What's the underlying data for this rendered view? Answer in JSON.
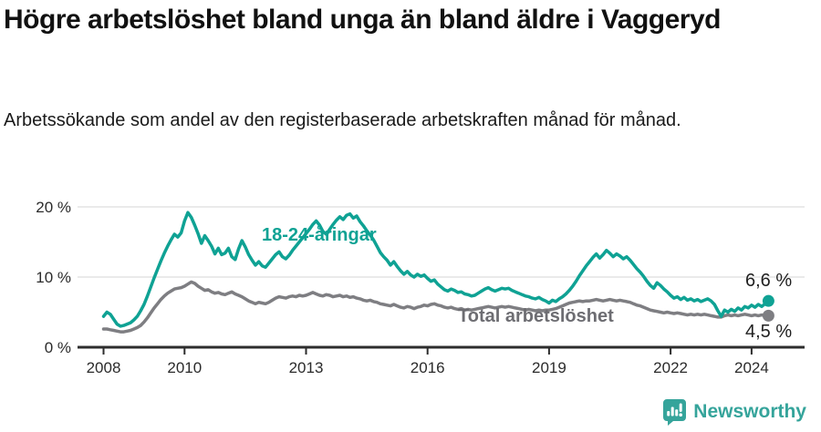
{
  "header": {
    "title": "Högre arbetslöshet bland unga än bland äldre i Vaggeryd",
    "subtitle": "Arbetssökande som andel av den registerbaserade arbetskraften månad för månad."
  },
  "chart_data": {
    "type": "line",
    "title": "Högre arbetslöshet bland unga än bland äldre i Vaggeryd",
    "xlabel": "",
    "ylabel": "Arbetssökande som andel av den registerbaserade arbetskraften",
    "x_start_year": 2008,
    "points_per_year": 12,
    "x_end_label": "jun 2024",
    "xlim": [
      2007.4,
      2025.3
    ],
    "ylim": [
      0,
      21.5
    ],
    "grid": "horizontal",
    "legend_position": "inline-labels",
    "x_ticks": [
      {
        "v": 2008,
        "label": "2008"
      },
      {
        "v": 2010,
        "label": "2010"
      },
      {
        "v": 2013,
        "label": "2013"
      },
      {
        "v": 2016,
        "label": "2016"
      },
      {
        "v": 2019,
        "label": "2019"
      },
      {
        "v": 2022,
        "label": "2022"
      },
      {
        "v": 2024,
        "label": "2024"
      }
    ],
    "y_ticks": [
      {
        "v": 0,
        "label": "0 %"
      },
      {
        "v": 10,
        "label": "10 %"
      },
      {
        "v": 20,
        "label": "20 %"
      }
    ],
    "series": [
      {
        "name": "18-24-åringar",
        "color": "#0fa294",
        "end_label": "6,6 %",
        "end_value": 6.6,
        "values": [
          4.4,
          5.0,
          4.7,
          4.0,
          3.3,
          3.0,
          3.1,
          3.3,
          3.5,
          3.9,
          4.4,
          5.2,
          6.1,
          7.3,
          8.6,
          9.9,
          11.1,
          12.3,
          13.4,
          14.4,
          15.3,
          16.1,
          15.7,
          16.3,
          18.0,
          19.2,
          18.5,
          17.4,
          16.2,
          14.8,
          15.9,
          15.2,
          14.4,
          13.3,
          14.1,
          13.2,
          13.4,
          14.1,
          12.9,
          12.5,
          14.0,
          15.2,
          14.3,
          13.2,
          12.4,
          11.7,
          12.2,
          11.6,
          11.4,
          12.0,
          12.6,
          13.2,
          13.6,
          12.9,
          12.6,
          13.1,
          13.8,
          14.4,
          15.0,
          15.6,
          16.2,
          16.8,
          17.5,
          18.0,
          17.4,
          16.5,
          16.1,
          16.8,
          17.5,
          18.1,
          18.6,
          18.2,
          18.8,
          19.0,
          18.4,
          18.7,
          17.9,
          17.3,
          16.6,
          16.0,
          15.3,
          14.4,
          13.5,
          12.9,
          12.4,
          11.7,
          12.2,
          11.5,
          10.9,
          10.4,
          10.8,
          10.3,
          10.0,
          10.4,
          10.1,
          10.3,
          9.8,
          9.4,
          9.6,
          9.0,
          8.6,
          8.2,
          8.0,
          8.3,
          8.1,
          7.8,
          7.9,
          7.6,
          7.5,
          7.3,
          7.4,
          7.7,
          8.0,
          8.3,
          8.5,
          8.2,
          8.0,
          8.2,
          8.4,
          8.3,
          8.4,
          8.1,
          7.9,
          7.7,
          7.5,
          7.3,
          7.2,
          7.0,
          6.9,
          7.1,
          6.8,
          6.6,
          6.3,
          6.7,
          6.5,
          6.9,
          7.2,
          7.6,
          8.1,
          8.7,
          9.4,
          10.2,
          10.9,
          11.6,
          12.2,
          12.8,
          13.3,
          12.7,
          13.2,
          13.8,
          13.4,
          12.9,
          13.3,
          13.0,
          12.6,
          12.9,
          12.4,
          11.8,
          11.2,
          10.7,
          10.1,
          9.4,
          8.8,
          8.4,
          9.2,
          8.8,
          8.3,
          7.9,
          7.4,
          7.0,
          7.2,
          6.8,
          7.1,
          6.7,
          6.9,
          6.6,
          6.8,
          6.5,
          6.7,
          6.9,
          6.6,
          6.1,
          5.2,
          4.4,
          5.3,
          5.0,
          5.4,
          5.1,
          5.6,
          5.3,
          5.8,
          5.6,
          6.0,
          5.7,
          6.1,
          5.8,
          6.2,
          6.6
        ]
      },
      {
        "name": "Total arbetslöshet",
        "color": "#7e7e82",
        "label_color": "#6d6d72",
        "end_label": "4,5 %",
        "end_value": 4.5,
        "values": [
          2.6,
          2.6,
          2.5,
          2.4,
          2.3,
          2.2,
          2.2,
          2.3,
          2.4,
          2.6,
          2.8,
          3.1,
          3.6,
          4.2,
          4.9,
          5.6,
          6.2,
          6.8,
          7.3,
          7.7,
          8.0,
          8.3,
          8.4,
          8.5,
          8.7,
          9.0,
          9.3,
          9.1,
          8.7,
          8.4,
          8.1,
          8.2,
          7.9,
          7.7,
          7.8,
          7.6,
          7.5,
          7.7,
          7.9,
          7.6,
          7.4,
          7.2,
          6.9,
          6.6,
          6.4,
          6.2,
          6.4,
          6.3,
          6.2,
          6.4,
          6.7,
          7.0,
          7.2,
          7.1,
          7.0,
          7.2,
          7.3,
          7.2,
          7.4,
          7.3,
          7.4,
          7.6,
          7.8,
          7.6,
          7.4,
          7.3,
          7.5,
          7.4,
          7.2,
          7.3,
          7.4,
          7.2,
          7.3,
          7.1,
          7.2,
          7.0,
          6.9,
          6.7,
          6.6,
          6.7,
          6.5,
          6.4,
          6.2,
          6.1,
          6.0,
          5.9,
          6.1,
          5.9,
          5.7,
          5.6,
          5.8,
          5.7,
          5.5,
          5.7,
          5.8,
          6.0,
          5.9,
          6.1,
          6.2,
          6.0,
          5.9,
          5.7,
          5.6,
          5.7,
          5.5,
          5.4,
          5.5,
          5.3,
          5.4,
          5.3,
          5.4,
          5.5,
          5.6,
          5.7,
          5.8,
          5.7,
          5.6,
          5.7,
          5.8,
          5.7,
          5.8,
          5.7,
          5.6,
          5.5,
          5.4,
          5.3,
          5.4,
          5.3,
          5.2,
          5.3,
          5.2,
          5.3,
          5.3,
          5.4,
          5.5,
          5.7,
          5.9,
          6.1,
          6.3,
          6.4,
          6.5,
          6.6,
          6.5,
          6.6,
          6.6,
          6.7,
          6.8,
          6.7,
          6.6,
          6.7,
          6.8,
          6.7,
          6.6,
          6.7,
          6.6,
          6.5,
          6.4,
          6.2,
          6.0,
          5.9,
          5.7,
          5.5,
          5.3,
          5.2,
          5.1,
          5.0,
          4.9,
          5.0,
          4.9,
          4.8,
          4.9,
          4.8,
          4.7,
          4.6,
          4.7,
          4.6,
          4.7,
          4.6,
          4.7,
          4.6,
          4.5,
          4.4,
          4.3,
          4.3,
          4.5,
          4.6,
          4.5,
          4.6,
          4.5,
          4.6,
          4.7,
          4.6,
          4.5,
          4.6,
          4.5,
          4.6,
          4.5,
          4.5
        ]
      }
    ],
    "axis_color": "#2d2d2d",
    "gridline_color": "#e3e3e3"
  },
  "footer": {
    "brand": "Newsworthy",
    "brand_color": "#35a49b"
  }
}
